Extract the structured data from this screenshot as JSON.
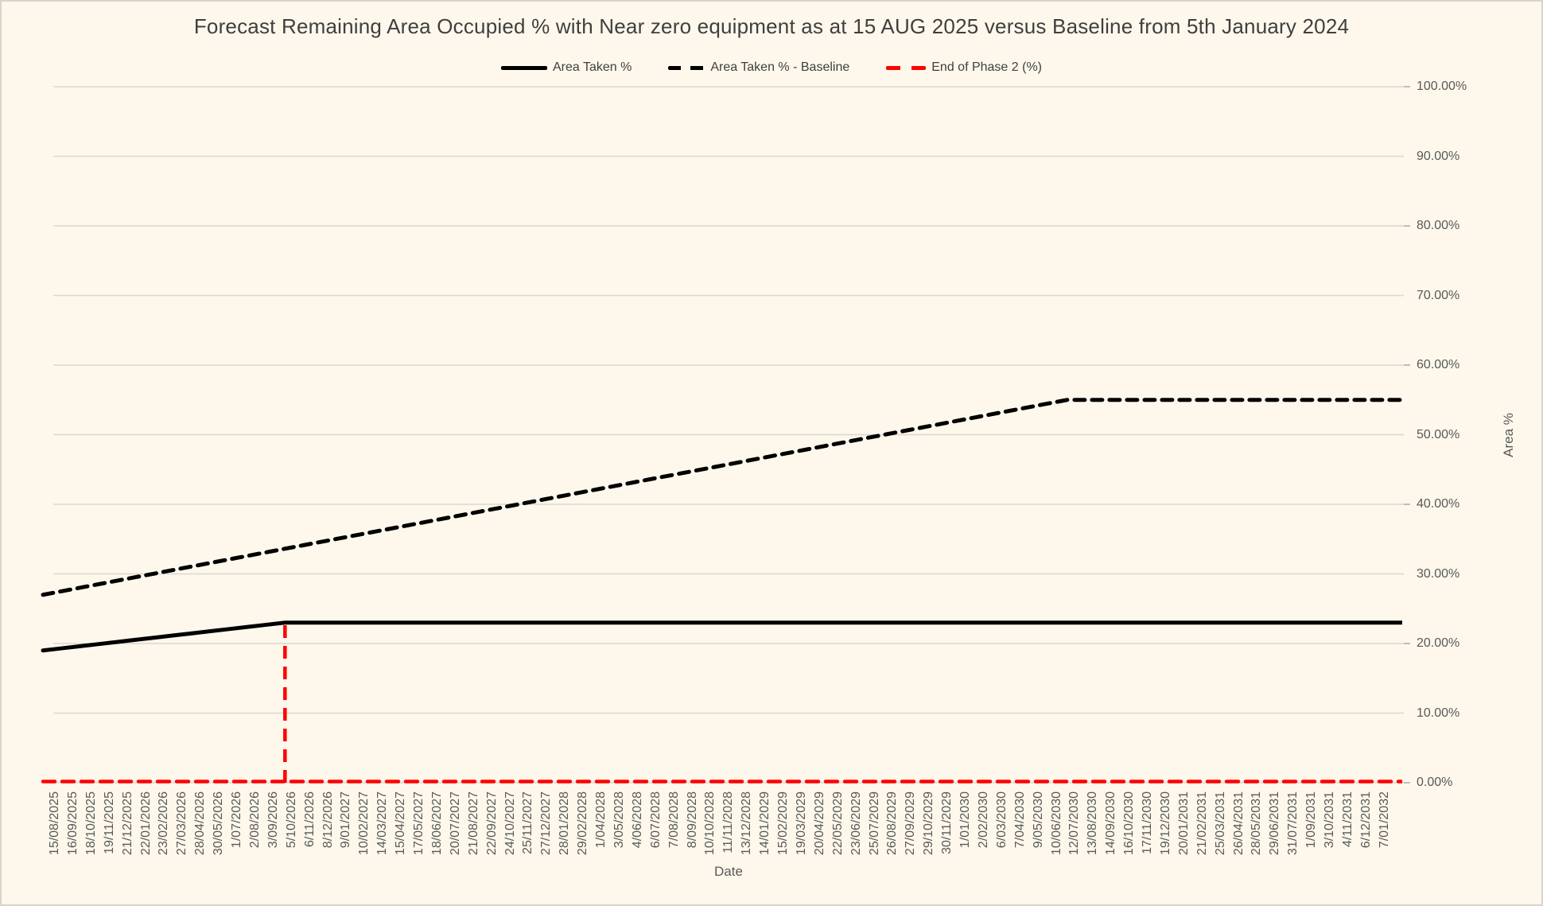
{
  "chart": {
    "title": "Forecast Remaining Area Occupied % with Near zero equipment as at 15 AUG 2025 versus Baseline from 5th January 2024",
    "background_color": "#FDF8EB",
    "gridline_color": "#D9D7CF",
    "tick_color": "#A6A6A6",
    "text_color": "#595959",
    "title_color": "#3F3F3F",
    "legend": [
      {
        "label": "Area Taken %",
        "style": "solid",
        "color": "#000000"
      },
      {
        "label": "Area Taken % - Baseline",
        "style": "dashed",
        "color": "#000000"
      },
      {
        "label": "End of Phase 2 (%)",
        "style": "dashed",
        "color": "#FF0000"
      }
    ],
    "x_axis": {
      "title": "Date"
    },
    "y_axis": {
      "title": "Area %",
      "tick_labels": [
        "100.00%",
        "90.00%",
        "80.00%",
        "70.00%",
        "60.00%",
        "50.00%",
        "40.00%",
        "30.00%",
        "20.00%",
        "10.00%",
        "0.00%"
      ]
    }
  },
  "chart_data": {
    "type": "line",
    "title": "Forecast Remaining Area Occupied % with Near zero equipment as at 15 AUG 2025 versus Baseline from 5th January 2024",
    "xlabel": "Date",
    "ylabel": "Area %",
    "ylim": [
      0,
      100
    ],
    "y_step": 10,
    "grid": "horizontal",
    "legend_position": "top-center",
    "categories": [
      "15/08/2025",
      "16/09/2025",
      "18/10/2025",
      "19/11/2025",
      "21/12/2025",
      "22/01/2026",
      "23/02/2026",
      "27/03/2026",
      "28/04/2026",
      "30/05/2026",
      "1/07/2026",
      "2/08/2026",
      "3/09/2026",
      "5/10/2026",
      "6/11/2026",
      "8/12/2026",
      "9/01/2027",
      "10/02/2027",
      "14/03/2027",
      "15/04/2027",
      "17/05/2027",
      "18/06/2027",
      "20/07/2027",
      "21/08/2027",
      "22/09/2027",
      "24/10/2027",
      "25/11/2027",
      "27/12/2027",
      "28/01/2028",
      "29/02/2028",
      "1/04/2028",
      "3/05/2028",
      "4/06/2028",
      "6/07/2028",
      "7/08/2028",
      "8/09/2028",
      "10/10/2028",
      "11/11/2028",
      "13/12/2028",
      "14/01/2029",
      "15/02/2029",
      "19/03/2029",
      "20/04/2029",
      "22/05/2029",
      "23/06/2029",
      "25/07/2029",
      "26/08/2029",
      "27/09/2029",
      "29/10/2029",
      "30/11/2029",
      "1/01/2030",
      "2/02/2030",
      "6/03/2030",
      "7/04/2030",
      "9/05/2030",
      "10/06/2030",
      "12/07/2030",
      "13/08/2030",
      "14/09/2030",
      "16/10/2030",
      "17/11/2030",
      "19/12/2030",
      "20/01/2031",
      "21/02/2031",
      "25/03/2031",
      "26/04/2031",
      "28/05/2031",
      "29/06/2031",
      "31/07/2031",
      "1/09/2031",
      "3/10/2031",
      "4/11/2031",
      "6/12/2031",
      "7/01/2032"
    ],
    "series": [
      {
        "name": "Area Taken %",
        "color": "#000000",
        "line_style": "solid",
        "stroke_width": 5,
        "interpolation": "linear-between-breakpoints",
        "breakpoints": [
          {
            "category": "15/08/2025",
            "index": 0,
            "value": 19
          },
          {
            "category": "5/10/2026",
            "index": 13,
            "value": 23
          },
          {
            "category": "7/01/2032",
            "index": 73,
            "value": 23
          }
        ]
      },
      {
        "name": "Area Taken % - Baseline",
        "color": "#000000",
        "line_style": "dashed",
        "dash": [
          13,
          9
        ],
        "stroke_width": 5,
        "interpolation": "linear-between-breakpoints",
        "breakpoints": [
          {
            "category": "15/08/2025",
            "index": 0,
            "value": 27
          },
          {
            "category": "10/06/2030",
            "index": 55,
            "value": 55
          },
          {
            "category": "7/01/2032",
            "index": 73,
            "value": 55
          }
        ]
      },
      {
        "name": "End of Phase 2 (%)",
        "color": "#FF0000",
        "line_style": "dashed",
        "dash": [
          15,
          9
        ],
        "stroke_width": 4.5,
        "interpolation": "linear-between-breakpoints",
        "breakpoints": [
          {
            "category": "15/08/2025",
            "index": 0,
            "value": 0
          },
          {
            "category": "7/01/2032",
            "index": 73,
            "value": 0
          }
        ],
        "spike": {
          "category": "5/10/2026",
          "index": 13,
          "value": 23
        }
      }
    ]
  }
}
